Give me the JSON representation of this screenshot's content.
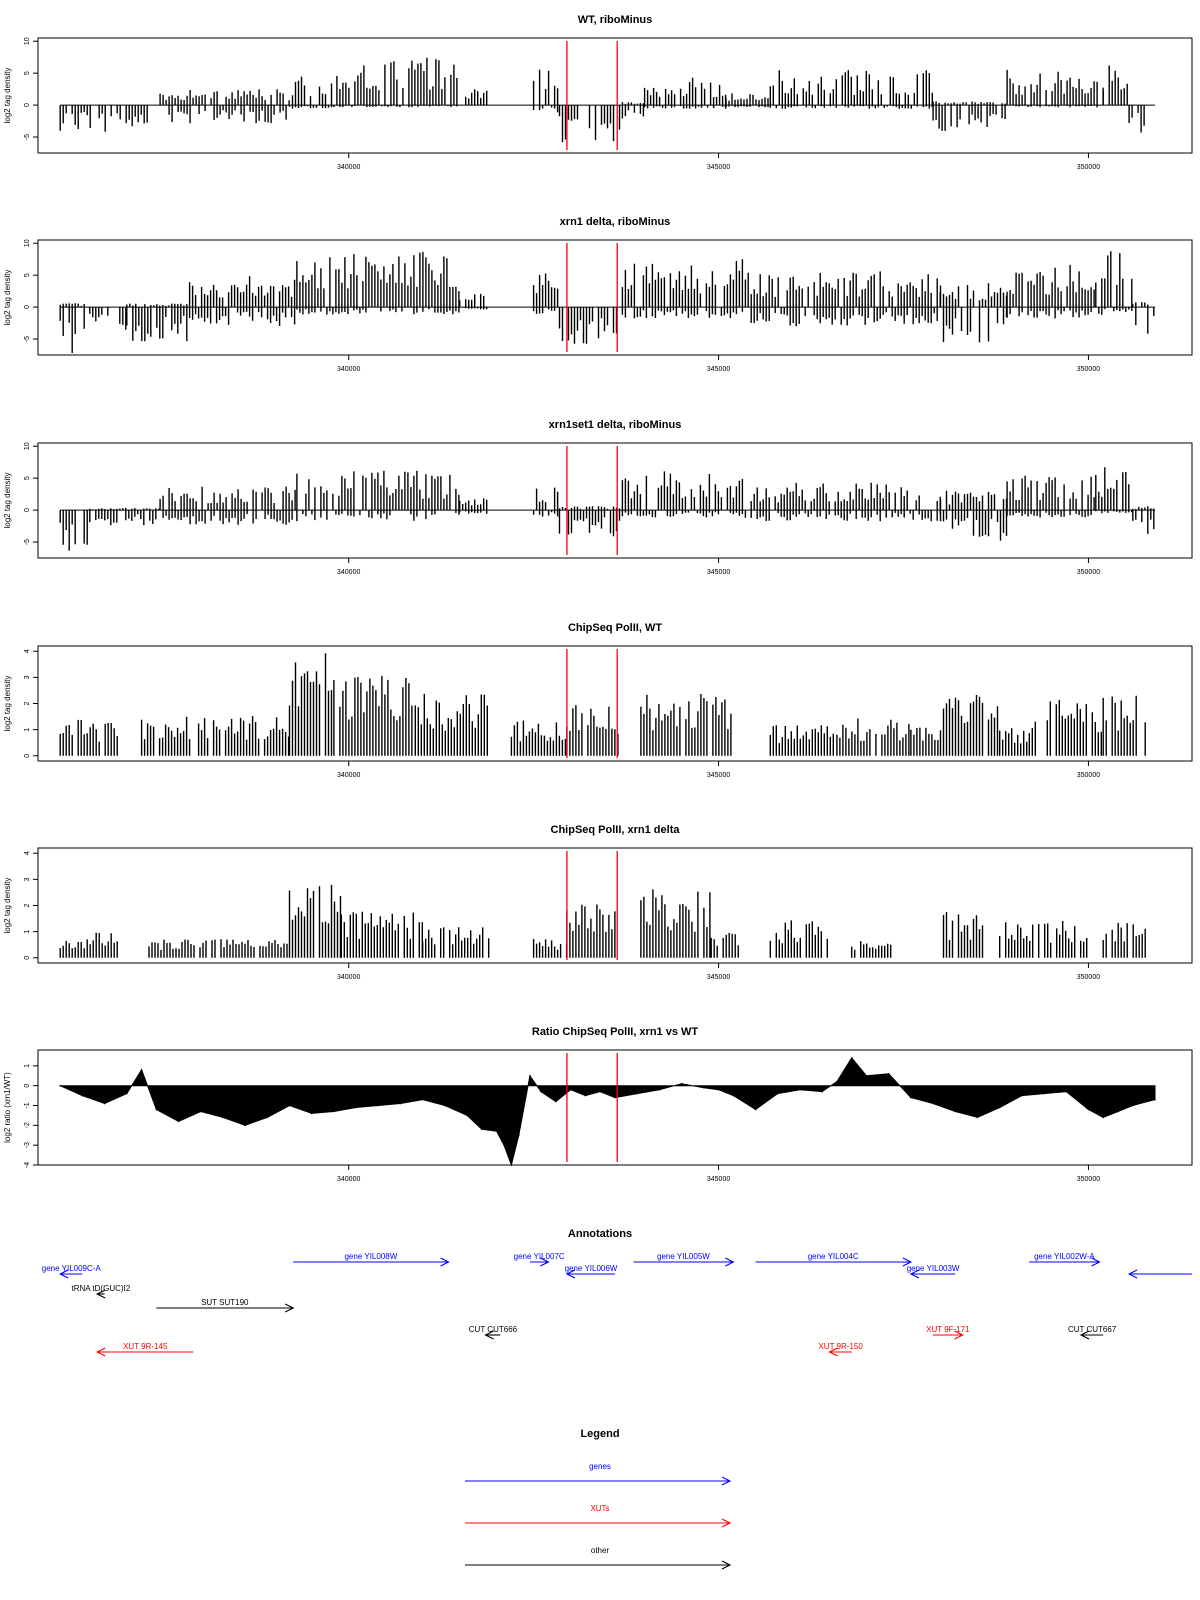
{
  "colors": {
    "gene": "#0000ff",
    "xut": "#ff0000",
    "other": "#000000",
    "marker": "#ff0000",
    "frame": "#000000"
  },
  "chart_data": [
    {
      "type": "bar",
      "title": "WT, riboMinus",
      "ylabel": "log2 tag density",
      "xlim": [
        335800,
        351400
      ],
      "ylim": [
        -7.5,
        10.5
      ],
      "yticks": [
        -5,
        0,
        5,
        10
      ],
      "xticks": [
        340000,
        345000,
        350000
      ],
      "markers_x": [
        342950,
        343630
      ],
      "signal": "strand-specific (+ above axis, - below axis)",
      "segments": [
        {
          "x": [
            336100,
            337350
          ],
          "plus": 0,
          "minus": -3.5
        },
        {
          "x": [
            337450,
            339200
          ],
          "plus": 2,
          "minus": -2.5
        },
        {
          "x": [
            339200,
            339800
          ],
          "plus": 4,
          "minus": -0.5
        },
        {
          "x": [
            339800,
            341500
          ],
          "plus": 6.5,
          "minus": -0.3
        },
        {
          "x": [
            341500,
            341900
          ],
          "plus": 2,
          "minus": 0
        },
        {
          "x": [
            342500,
            342850
          ],
          "plus": 4.5,
          "minus": -1
        },
        {
          "x": [
            342850,
            343700
          ],
          "plus": 0,
          "minus": -5
        },
        {
          "x": [
            343700,
            344000
          ],
          "plus": 0.5,
          "minus": -2
        },
        {
          "x": [
            344000,
            345100
          ],
          "plus": 3.5,
          "minus": -0.5
        },
        {
          "x": [
            345100,
            345700
          ],
          "plus": 1.5,
          "minus": -0.3
        },
        {
          "x": [
            345700,
            347900
          ],
          "plus": 4.5,
          "minus": -0.5
        },
        {
          "x": [
            347900,
            348900
          ],
          "plus": 0.5,
          "minus": -3.5
        },
        {
          "x": [
            348900,
            350200
          ],
          "plus": 4.5,
          "minus": -0.3
        },
        {
          "x": [
            350200,
            350550
          ],
          "plus": 6,
          "minus": 0
        },
        {
          "x": [
            350550,
            350900
          ],
          "plus": 0,
          "minus": -4
        }
      ]
    },
    {
      "type": "bar",
      "title": "xrn1 delta, riboMinus",
      "ylabel": "log2 tag density",
      "xlim": [
        335800,
        351400
      ],
      "ylim": [
        -7.5,
        10.5
      ],
      "yticks": [
        -5,
        0,
        5,
        10
      ],
      "xticks": [
        340000,
        345000,
        350000
      ],
      "markers_x": [
        342950,
        343630
      ],
      "signal": "strand-specific (+ above axis, - below axis)",
      "segments": [
        {
          "x": [
            336100,
            336500
          ],
          "plus": 0.5,
          "minus": -6
        },
        {
          "x": [
            336500,
            337000
          ],
          "plus": 0,
          "minus": -3
        },
        {
          "x": [
            337000,
            337850
          ],
          "plus": 0.5,
          "minus": -4.5
        },
        {
          "x": [
            337850,
            339300
          ],
          "plus": 4,
          "minus": -2.5
        },
        {
          "x": [
            339300,
            341500
          ],
          "plus": 7,
          "minus": -1
        },
        {
          "x": [
            341500,
            341900
          ],
          "plus": 2.5,
          "minus": -0.3
        },
        {
          "x": [
            342500,
            342850
          ],
          "plus": 4.5,
          "minus": -1
        },
        {
          "x": [
            342850,
            343700
          ],
          "plus": 0,
          "minus": -5
        },
        {
          "x": [
            343700,
            345400
          ],
          "plus": 6,
          "minus": -1.5
        },
        {
          "x": [
            345400,
            348000
          ],
          "plus": 4.5,
          "minus": -2.5
        },
        {
          "x": [
            348000,
            348900
          ],
          "plus": 3,
          "minus": -5
        },
        {
          "x": [
            348900,
            350100
          ],
          "plus": 5.5,
          "minus": -1.5
        },
        {
          "x": [
            350100,
            350600
          ],
          "plus": 7,
          "minus": -1
        },
        {
          "x": [
            350600,
            350900
          ],
          "plus": 1,
          "minus": -3.5
        }
      ]
    },
    {
      "type": "bar",
      "title": "xrn1set1 delta, riboMinus",
      "ylabel": "log2 tag density",
      "xlim": [
        335800,
        351400
      ],
      "ylim": [
        -7.5,
        10.5
      ],
      "yticks": [
        -5,
        0,
        5,
        10
      ],
      "xticks": [
        340000,
        345000,
        350000
      ],
      "markers_x": [
        342950,
        343630
      ],
      "signal": "strand-specific (+ above axis, - below axis)",
      "segments": [
        {
          "x": [
            336100,
            336500
          ],
          "plus": 0,
          "minus": -5.5
        },
        {
          "x": [
            336500,
            337450
          ],
          "plus": 0.3,
          "minus": -2
        },
        {
          "x": [
            337450,
            339300
          ],
          "plus": 3,
          "minus": -2
        },
        {
          "x": [
            339300,
            341500
          ],
          "plus": 5,
          "minus": -1.5
        },
        {
          "x": [
            341500,
            341900
          ],
          "plus": 1.5,
          "minus": -0.5
        },
        {
          "x": [
            342500,
            342850
          ],
          "plus": 3,
          "minus": -1
        },
        {
          "x": [
            342850,
            343700
          ],
          "plus": 0.5,
          "minus": -3.5
        },
        {
          "x": [
            343700,
            345400
          ],
          "plus": 5,
          "minus": -1
        },
        {
          "x": [
            345400,
            348000
          ],
          "plus": 3.5,
          "minus": -1.5
        },
        {
          "x": [
            348000,
            348900
          ],
          "plus": 2.5,
          "minus": -4
        },
        {
          "x": [
            348900,
            350100
          ],
          "plus": 4.5,
          "minus": -1
        },
        {
          "x": [
            350100,
            350600
          ],
          "plus": 5.5,
          "minus": -0.5
        },
        {
          "x": [
            350600,
            350900
          ],
          "plus": 0.5,
          "minus": -3.5
        }
      ]
    },
    {
      "type": "bar",
      "title": "ChipSeq PolII, WT",
      "ylabel": "log2 tag density",
      "xlim": [
        335800,
        351400
      ],
      "ylim": [
        -0.2,
        4.2
      ],
      "yticks": [
        0,
        1,
        2,
        3,
        4
      ],
      "xticks": [
        340000,
        345000,
        350000
      ],
      "markers_x": [
        342950,
        343630
      ],
      "segments": [
        {
          "x": [
            336100,
            336900
          ],
          "level": 1.2
        },
        {
          "x": [
            337200,
            339200
          ],
          "level": 1.3
        },
        {
          "x": [
            339200,
            339800
          ],
          "level": 3.3
        },
        {
          "x": [
            339800,
            340900
          ],
          "level": 2.6
        },
        {
          "x": [
            340900,
            341900
          ],
          "level": 2.0
        },
        {
          "x": [
            342200,
            342950
          ],
          "level": 1.2
        },
        {
          "x": [
            342950,
            343650
          ],
          "level": 1.7
        },
        {
          "x": [
            343950,
            345200
          ],
          "level": 2.0
        },
        {
          "x": [
            345700,
            346600
          ],
          "level": 1.0
        },
        {
          "x": [
            346600,
            347600
          ],
          "level": 1.2
        },
        {
          "x": [
            347600,
            348000
          ],
          "level": 1.0
        },
        {
          "x": [
            348000,
            348800
          ],
          "level": 2.0
        },
        {
          "x": [
            348800,
            349200
          ],
          "level": 1.0
        },
        {
          "x": [
            349200,
            350200
          ],
          "level": 1.8
        },
        {
          "x": [
            350200,
            350800
          ],
          "level": 2.0
        }
      ]
    },
    {
      "type": "bar",
      "title": "ChipSeq PolII, xrn1 delta",
      "ylabel": "log2 tag density",
      "xlim": [
        335800,
        351400
      ],
      "ylim": [
        -0.2,
        4.2
      ],
      "yticks": [
        0,
        1,
        2,
        3,
        4
      ],
      "xticks": [
        340000,
        345000,
        350000
      ],
      "markers_x": [
        342950,
        343630
      ],
      "segments": [
        {
          "x": [
            336100,
            336900
          ],
          "level": 0.8
        },
        {
          "x": [
            337300,
            339200
          ],
          "level": 0.6
        },
        {
          "x": [
            339200,
            339900
          ],
          "level": 2.4
        },
        {
          "x": [
            339900,
            341000
          ],
          "level": 1.5
        },
        {
          "x": [
            341000,
            341900
          ],
          "level": 1.0
        },
        {
          "x": [
            342500,
            342950
          ],
          "level": 0.6
        },
        {
          "x": [
            342950,
            343600
          ],
          "level": 1.7
        },
        {
          "x": [
            343950,
            344900
          ],
          "level": 2.2
        },
        {
          "x": [
            344900,
            345300
          ],
          "level": 0.8
        },
        {
          "x": [
            345700,
            346500
          ],
          "level": 1.2
        },
        {
          "x": [
            346800,
            347400
          ],
          "level": 0.6
        },
        {
          "x": [
            348000,
            348600
          ],
          "level": 1.5
        },
        {
          "x": [
            348800,
            350000
          ],
          "level": 1.2
        },
        {
          "x": [
            350200,
            350800
          ],
          "level": 1.2
        }
      ]
    },
    {
      "type": "area",
      "title": "Ratio ChipSeq PolII, xrn1 vs WT",
      "ylabel": "log2 ratio (xrn1/WT)",
      "xlim": [
        335800,
        351400
      ],
      "ylim": [
        -4,
        1.8
      ],
      "yticks": [
        -4,
        -3,
        -2,
        -1,
        0,
        1
      ],
      "xticks": [
        340000,
        345000,
        350000
      ],
      "markers_x": [
        342950,
        343630
      ],
      "x": [
        336100,
        336400,
        336700,
        337000,
        337200,
        337400,
        337700,
        338000,
        338300,
        338600,
        338900,
        339200,
        339500,
        339800,
        340100,
        340400,
        340700,
        341000,
        341300,
        341600,
        341800,
        342000,
        342100,
        342200,
        342300,
        342450,
        342600,
        342800,
        343000,
        343200,
        343400,
        343600,
        343900,
        344200,
        344500,
        344800,
        345000,
        345200,
        345500,
        345800,
        346100,
        346400,
        346600,
        346800,
        347000,
        347300,
        347600,
        347900,
        348200,
        348500,
        348800,
        349100,
        349400,
        349700,
        350000,
        350200,
        350400,
        350600,
        350900
      ],
      "y": [
        0,
        -0.5,
        -0.9,
        -0.4,
        0.8,
        -1.2,
        -1.8,
        -1.3,
        -1.6,
        -2.0,
        -1.6,
        -1.0,
        -1.4,
        -1.3,
        -1.1,
        -1.0,
        -0.9,
        -0.7,
        -1.0,
        -1.5,
        -2.2,
        -2.3,
        -3.0,
        -4.0,
        -2.5,
        0.5,
        -0.3,
        -0.8,
        -0.2,
        -0.5,
        -0.3,
        -0.6,
        -0.4,
        -0.2,
        0.1,
        -0.1,
        -0.2,
        -0.5,
        -1.2,
        -0.4,
        -0.2,
        -0.3,
        0.2,
        1.4,
        0.5,
        0.6,
        -0.6,
        -0.9,
        -1.3,
        -1.6,
        -1.1,
        -0.5,
        -0.4,
        -0.3,
        -1.2,
        -1.6,
        -1.3,
        -1.0,
        -0.7
      ]
    }
  ],
  "annotations": {
    "title": "Annotations",
    "features": [
      {
        "label": "gene YIL009C-A",
        "cat": "gene",
        "from": 336400,
        "to": 336100,
        "row": 1
      },
      {
        "label": "tRNA tD(GUC)I2",
        "cat": "other",
        "from": 336700,
        "to": 336600,
        "row": 2
      },
      {
        "label": "SUT SUT190",
        "cat": "other",
        "from": 337400,
        "to": 339250,
        "row": 3
      },
      {
        "label": "XUT 9R-145",
        "cat": "xut",
        "from": 337900,
        "to": 336600,
        "row": 6
      },
      {
        "label": "gene YIL008W",
        "cat": "gene",
        "from": 339250,
        "to": 341350,
        "row": 0
      },
      {
        "label": "gene YIL007C",
        "cat": "gene",
        "from": 342450,
        "to": 342700,
        "row": 0
      },
      {
        "label": "gene YIL006W",
        "cat": "gene",
        "from": 343600,
        "to": 342950,
        "row": 1
      },
      {
        "label": "CUT CUT666",
        "cat": "other",
        "from": 342050,
        "to": 341850,
        "row": 5
      },
      {
        "label": "gene YIL005W",
        "cat": "gene",
        "from": 343850,
        "to": 345200,
        "row": 0
      },
      {
        "label": "gene YIL004C",
        "cat": "gene",
        "from": 345500,
        "to": 347600,
        "row": 0
      },
      {
        "label": "gene YIL003W",
        "cat": "gene",
        "from": 348200,
        "to": 347600,
        "row": 1
      },
      {
        "label": "XUT 9R-150",
        "cat": "xut",
        "from": 346800,
        "to": 346500,
        "row": 6
      },
      {
        "label": "XUT 9F-171",
        "cat": "xut",
        "from": 347900,
        "to": 348300,
        "row": 5
      },
      {
        "label": "gene YIL002W-A",
        "cat": "gene",
        "from": 349200,
        "to": 350150,
        "row": 0
      },
      {
        "label": "CUT CUT667",
        "cat": "other",
        "from": 350200,
        "to": 349900,
        "row": 5
      },
      {
        "label": "",
        "cat": "gene",
        "from": 351400,
        "to": 350550,
        "row": 1
      }
    ]
  },
  "legend": {
    "title": "Legend",
    "items": [
      {
        "label": "genes",
        "cat": "gene"
      },
      {
        "label": "XUTs",
        "cat": "xut"
      },
      {
        "label": "other",
        "cat": "other"
      }
    ]
  }
}
